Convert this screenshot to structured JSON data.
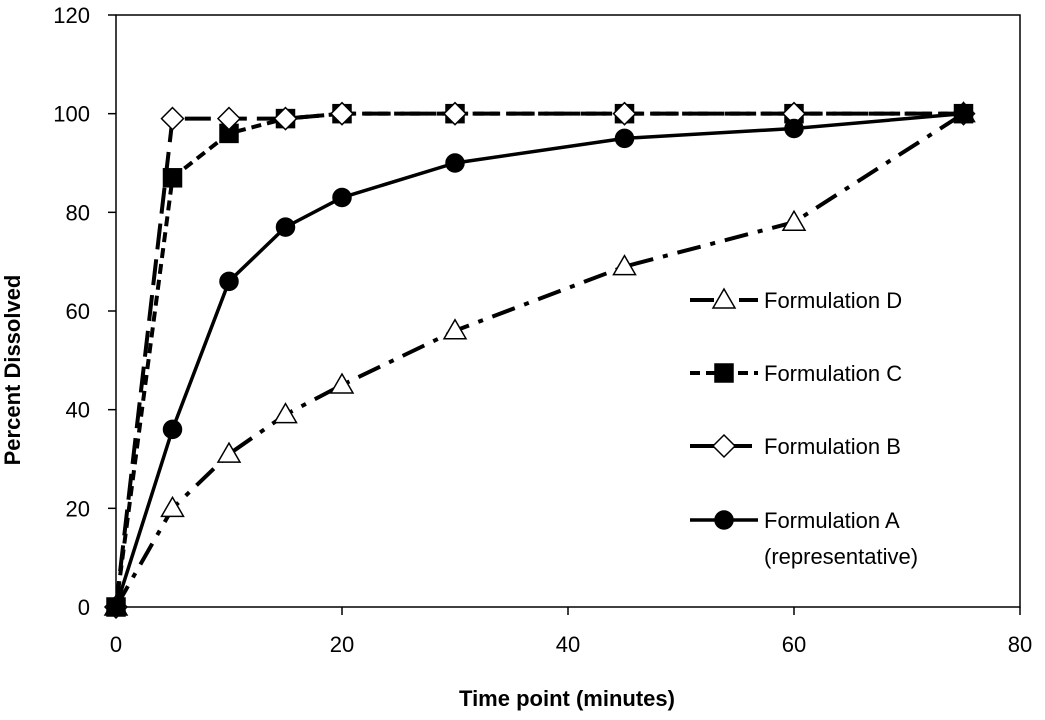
{
  "chart_data": {
    "type": "line",
    "title": "",
    "xlabel": "Time point (minutes)",
    "ylabel": "Percent Dissolved",
    "xlim": [
      0,
      80
    ],
    "ylim": [
      0,
      120
    ],
    "xticks": [
      0,
      20,
      40,
      60,
      80
    ],
    "yticks": [
      0,
      20,
      40,
      60,
      80,
      100,
      120
    ],
    "grid": false,
    "legend_position": "right",
    "series": [
      {
        "name": "Formulation D",
        "marker": "triangle-open",
        "line_style": "dash-dot",
        "x": [
          0,
          5,
          10,
          15,
          20,
          30,
          45,
          60,
          75
        ],
        "y": [
          0,
          20,
          31,
          39,
          45,
          56,
          69,
          78,
          100
        ]
      },
      {
        "name": "Formulation C",
        "marker": "square-filled",
        "line_style": "short-dash",
        "x": [
          0,
          5,
          10,
          15,
          20,
          30,
          45,
          60,
          75
        ],
        "y": [
          0,
          87,
          96,
          99,
          100,
          100,
          100,
          100,
          100
        ]
      },
      {
        "name": "Formulation B",
        "marker": "diamond-open",
        "line_style": "long-dash",
        "x": [
          0,
          5,
          10,
          15,
          20,
          30,
          45,
          60,
          75
        ],
        "y": [
          0,
          99,
          99,
          99,
          100,
          100,
          100,
          100,
          100
        ]
      },
      {
        "name": "Formulation A\n(representative)",
        "marker": "circle-filled",
        "line_style": "solid",
        "x": [
          0,
          5,
          10,
          15,
          20,
          30,
          45,
          60,
          75
        ],
        "y": [
          0,
          36,
          66,
          77,
          83,
          90,
          95,
          97,
          100
        ]
      }
    ],
    "colors": {
      "line": "#000000",
      "background": "#ffffff"
    }
  }
}
